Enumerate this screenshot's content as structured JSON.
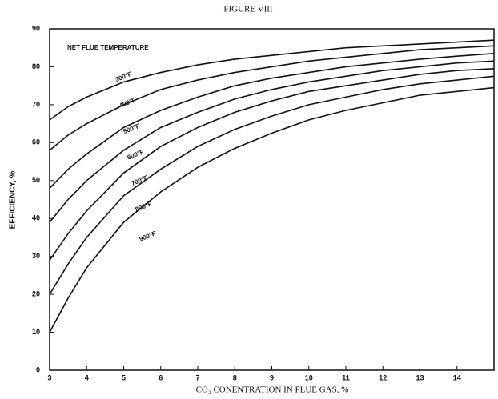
{
  "chart_data": {
    "type": "line",
    "title": "FIGURE VIII",
    "x_label": "CO₂ CONENTRATION IN FLUE GAS, %",
    "y_label": "EFFICIENCY, %",
    "annotation": "NET FLUE TEMPERATURE",
    "x": [
      3,
      3.5,
      4,
      5,
      6,
      7,
      8,
      9,
      10,
      11,
      12,
      13,
      14,
      15
    ],
    "series": [
      {
        "name": "300°F",
        "color": "#111111",
        "values": [
          66,
          69.5,
          72,
          76,
          78.5,
          80.5,
          82,
          83,
          84,
          85,
          85.5,
          86,
          86.5,
          87
        ]
      },
      {
        "name": "400°F",
        "color": "#111111",
        "values": [
          58,
          62,
          65,
          70,
          74,
          76.5,
          78.5,
          80,
          81.5,
          82.5,
          83.5,
          84.5,
          85,
          85.5
        ]
      },
      {
        "name": "500°F",
        "color": "#111111",
        "values": [
          48,
          53,
          57,
          64,
          68.5,
          72,
          75,
          77,
          78.5,
          80,
          81,
          82,
          82.8,
          83.5
        ]
      },
      {
        "name": "600°F",
        "color": "#111111",
        "values": [
          39,
          45,
          50,
          58,
          64,
          68,
          71.5,
          74,
          76,
          77.5,
          79,
          80,
          81,
          81.5
        ]
      },
      {
        "name": "700°F",
        "color": "#111111",
        "values": [
          29,
          36,
          42,
          52,
          59,
          64,
          68,
          71,
          73.5,
          75,
          76.5,
          78,
          79,
          79.5
        ]
      },
      {
        "name": "800°F",
        "color": "#111111",
        "values": [
          20,
          28,
          35,
          46,
          53,
          59,
          63.5,
          67,
          70,
          72,
          74,
          75.5,
          76.5,
          77.5
        ]
      },
      {
        "name": "900°F",
        "color": "#111111",
        "values": [
          10,
          19,
          27,
          39,
          47,
          53.5,
          58.5,
          62.5,
          66,
          68.5,
          70.5,
          72.5,
          73.5,
          74.5
        ]
      }
    ],
    "xlim": [
      3,
      15
    ],
    "xticks": [
      3,
      4,
      5,
      6,
      7,
      8,
      9,
      10,
      11,
      12,
      13,
      14
    ],
    "ylim": [
      0,
      90
    ],
    "yticks": [
      0,
      10,
      20,
      30,
      40,
      50,
      60,
      70,
      80,
      90
    ]
  }
}
